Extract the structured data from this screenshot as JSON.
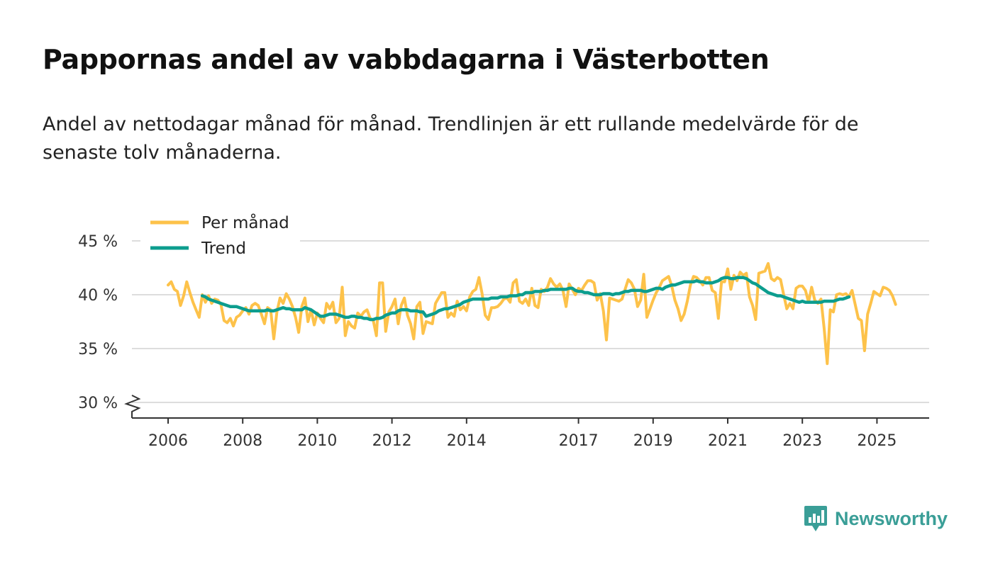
{
  "header": {
    "title": "Pappornas andel av vabbdagarna i Västerbotten",
    "subtitle": "Andel av nettodagar månad för månad. Trendlinjen är ett rullande medelvärde för de senaste tolv månaderna."
  },
  "brand": {
    "name": "Newsworthy",
    "icon": "newsworthy-logo-icon",
    "color": "#3a9e97"
  },
  "colors": {
    "per_month": "#fdc24a",
    "trend": "#0c9d8e",
    "grid": "#dddddd",
    "axis": "#333333"
  },
  "chart_data": {
    "type": "line",
    "title": "Pappornas andel av vabbdagarna i Västerbotten",
    "xlabel": "",
    "ylabel": "",
    "ylim": [
      30,
      45
    ],
    "y_axis_break": true,
    "xlim": [
      2005.8,
      2026.3
    ],
    "grid": true,
    "legend_position": "top-left",
    "x_ticks": [
      2006,
      2008,
      2010,
      2012,
      2014,
      2017,
      2019,
      2021,
      2023,
      2025
    ],
    "y_ticks": [
      30,
      35,
      40,
      45
    ],
    "y_tick_labels": [
      "30 %",
      "35 %",
      "40 %",
      "45 %"
    ],
    "legend": [
      "Per månad",
      "Trend"
    ],
    "series": [
      {
        "name": "Per månad",
        "x_start": 2006.0,
        "x_step": 0.0833333,
        "values": [
          40.9,
          41.2,
          40.5,
          40.3,
          39.0,
          39.9,
          41.2,
          40.2,
          39.3,
          38.6,
          37.9,
          40.0,
          39.3,
          39.9,
          39.2,
          39.6,
          39.5,
          39.1,
          37.6,
          37.4,
          37.8,
          37.1,
          37.9,
          38.1,
          38.5,
          38.8,
          38.2,
          39.0,
          39.2,
          39.0,
          38.2,
          37.3,
          38.8,
          38.6,
          35.9,
          38.4,
          39.7,
          39.2,
          40.1,
          39.6,
          38.9,
          37.9,
          36.5,
          38.9,
          39.7,
          37.5,
          38.6,
          37.2,
          38.3,
          37.8,
          37.4,
          39.2,
          38.7,
          39.3,
          37.4,
          37.8,
          40.7,
          36.2,
          37.5,
          37.1,
          36.9,
          38.3,
          38.0,
          38.4,
          38.6,
          37.8,
          37.6,
          36.2,
          41.1,
          41.1,
          36.6,
          38.4,
          38.9,
          39.6,
          37.3,
          39.0,
          39.7,
          38.1,
          37.3,
          35.9,
          38.9,
          39.3,
          36.4,
          37.5,
          37.4,
          37.3,
          39.2,
          39.7,
          40.2,
          40.2,
          37.9,
          38.3,
          38.0,
          39.4,
          38.6,
          38.9,
          38.5,
          39.8,
          40.3,
          40.5,
          41.6,
          40.1,
          38.1,
          37.7,
          38.8,
          38.8,
          38.9,
          39.2,
          39.6,
          39.7,
          39.3,
          41.1,
          41.4,
          39.4,
          39.2,
          39.6,
          39.0,
          40.6,
          39.0,
          38.8,
          40.5,
          40.3,
          40.7,
          41.5,
          41.0,
          40.7,
          41.0,
          40.4,
          38.9,
          41.0,
          40.5,
          40.0,
          40.6,
          40.4,
          40.9,
          41.3,
          41.3,
          41.1,
          39.5,
          40.1,
          38.5,
          35.8,
          39.7,
          39.6,
          39.5,
          39.4,
          39.6,
          40.5,
          41.4,
          41.1,
          40.5,
          38.9,
          39.5,
          41.9,
          37.9,
          38.7,
          39.5,
          40.2,
          40.7,
          41.3,
          41.5,
          41.7,
          40.8,
          39.5,
          38.7,
          37.6,
          38.2,
          39.4,
          40.9,
          41.7,
          41.6,
          41.3,
          40.9,
          41.6,
          41.6,
          40.4,
          40.2,
          37.8,
          41.2,
          41.2,
          42.4,
          40.5,
          41.8,
          41.3,
          42.1,
          41.8,
          42.0,
          39.8,
          39.0,
          37.7,
          42.0,
          42.1,
          42.2,
          42.9,
          41.5,
          41.3,
          41.6,
          41.4,
          40.0,
          38.7,
          39.2,
          38.7,
          40.6,
          40.8,
          40.8,
          40.4,
          39.3,
          40.7,
          39.5,
          39.2,
          39.6,
          36.9,
          33.6,
          38.6,
          38.4,
          40.0,
          40.1,
          40.0,
          40.1,
          39.8,
          40.4,
          39.1,
          37.8,
          37.6,
          34.8,
          38.2,
          39.2,
          40.3,
          40.1,
          39.9,
          40.7,
          40.6,
          40.4,
          39.9,
          39.1
        ]
      },
      {
        "name": "Trend",
        "x_start": 2006.9167,
        "x_step": 0.0833333,
        "values": [
          39.9,
          39.8,
          39.6,
          39.5,
          39.4,
          39.3,
          39.2,
          39.1,
          39.0,
          38.9,
          38.9,
          38.9,
          38.8,
          38.7,
          38.6,
          38.5,
          38.5,
          38.5,
          38.5,
          38.5,
          38.5,
          38.6,
          38.5,
          38.5,
          38.6,
          38.7,
          38.8,
          38.7,
          38.7,
          38.6,
          38.6,
          38.6,
          38.6,
          38.8,
          38.7,
          38.6,
          38.4,
          38.2,
          38.0,
          38.0,
          38.1,
          38.2,
          38.2,
          38.2,
          38.1,
          38.0,
          37.9,
          37.9,
          38.0,
          38.0,
          37.9,
          37.9,
          37.8,
          37.8,
          37.7,
          37.7,
          37.8,
          37.8,
          37.9,
          38.1,
          38.2,
          38.3,
          38.3,
          38.5,
          38.6,
          38.6,
          38.6,
          38.5,
          38.5,
          38.5,
          38.4,
          38.4,
          38.0,
          38.1,
          38.2,
          38.3,
          38.5,
          38.6,
          38.7,
          38.7,
          38.8,
          38.9,
          39.0,
          39.1,
          39.3,
          39.4,
          39.5,
          39.6,
          39.6,
          39.6,
          39.6,
          39.6,
          39.6,
          39.7,
          39.7,
          39.7,
          39.8,
          39.8,
          39.8,
          39.9,
          39.9,
          39.9,
          40.0,
          40.0,
          40.2,
          40.2,
          40.2,
          40.3,
          40.3,
          40.3,
          40.4,
          40.4,
          40.5,
          40.5,
          40.5,
          40.5,
          40.5,
          40.5,
          40.6,
          40.6,
          40.4,
          40.3,
          40.3,
          40.2,
          40.2,
          40.1,
          40.0,
          40.0,
          40.0,
          40.1,
          40.1,
          40.1,
          40.0,
          40.1,
          40.1,
          40.2,
          40.3,
          40.3,
          40.4,
          40.4,
          40.4,
          40.4,
          40.3,
          40.3,
          40.4,
          40.5,
          40.6,
          40.6,
          40.5,
          40.7,
          40.8,
          40.9,
          40.9,
          41.0,
          41.1,
          41.2,
          41.2,
          41.2,
          41.2,
          41.3,
          41.2,
          41.2,
          41.1,
          41.1,
          41.1,
          41.2,
          41.3,
          41.5,
          41.6,
          41.6,
          41.5,
          41.5,
          41.6,
          41.6,
          41.6,
          41.5,
          41.3,
          41.1,
          41.0,
          40.8,
          40.6,
          40.4,
          40.2,
          40.1,
          40.0,
          39.9,
          39.9,
          39.8,
          39.7,
          39.6,
          39.5,
          39.4,
          39.3,
          39.4,
          39.3,
          39.3,
          39.3,
          39.3,
          39.3,
          39.3,
          39.4,
          39.4,
          39.4,
          39.4,
          39.5,
          39.6,
          39.6,
          39.7,
          39.8
        ]
      }
    ]
  }
}
